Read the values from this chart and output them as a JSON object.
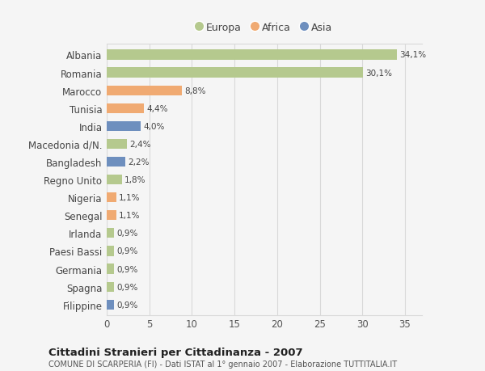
{
  "countries": [
    "Albania",
    "Romania",
    "Marocco",
    "Tunisia",
    "India",
    "Macedonia d/N.",
    "Bangladesh",
    "Regno Unito",
    "Nigeria",
    "Senegal",
    "Irlanda",
    "Paesi Bassi",
    "Germania",
    "Spagna",
    "Filippine"
  ],
  "values": [
    34.1,
    30.1,
    8.8,
    4.4,
    4.0,
    2.4,
    2.2,
    1.8,
    1.1,
    1.1,
    0.9,
    0.9,
    0.9,
    0.9,
    0.9
  ],
  "labels": [
    "34,1%",
    "30,1%",
    "8,8%",
    "4,4%",
    "4,0%",
    "2,4%",
    "2,2%",
    "1,8%",
    "1,1%",
    "1,1%",
    "0,9%",
    "0,9%",
    "0,9%",
    "0,9%",
    "0,9%"
  ],
  "colors": [
    "#b5c98e",
    "#b5c98e",
    "#f0aa72",
    "#f0aa72",
    "#6e8fbe",
    "#b5c98e",
    "#6e8fbe",
    "#b5c98e",
    "#f0aa72",
    "#f0aa72",
    "#b5c98e",
    "#b5c98e",
    "#b5c98e",
    "#b5c98e",
    "#6e8fbe"
  ],
  "legend_labels": [
    "Europa",
    "Africa",
    "Asia"
  ],
  "legend_colors": [
    "#b5c98e",
    "#f0aa72",
    "#6e8fbe"
  ],
  "title": "Cittadini Stranieri per Cittadinanza - 2007",
  "subtitle": "COMUNE DI SCARPERIA (FI) - Dati ISTAT al 1° gennaio 2007 - Elaborazione TUTTITALIA.IT",
  "xlim": [
    0,
    37
  ],
  "xticks": [
    0,
    5,
    10,
    15,
    20,
    25,
    30,
    35
  ],
  "background_color": "#f5f5f5",
  "gridcolor": "#d9d9d9"
}
